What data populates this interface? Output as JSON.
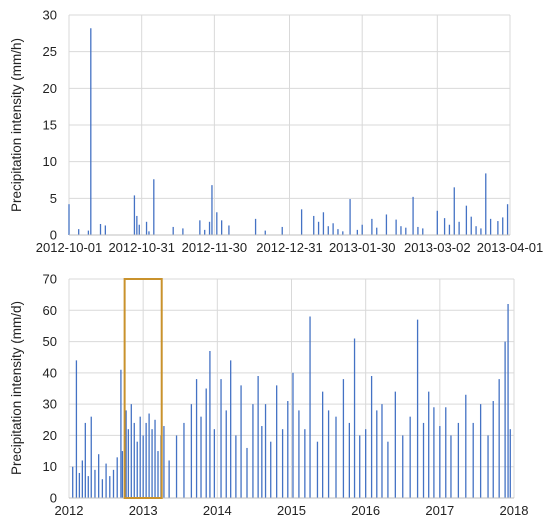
{
  "chart_data": [
    {
      "type": "line",
      "ylabel": "Precipitation intensity (mm/h)",
      "ylim": [
        0,
        30
      ],
      "yticks": [
        "0",
        "5",
        "10",
        "15",
        "20",
        "25",
        "30"
      ],
      "xlim": [
        "2012-10-01",
        "2013-04-01"
      ],
      "xticks": [
        "2012-10-01",
        "2012-10-31",
        "2012-11-30",
        "2012-12-31",
        "2013-01-30",
        "2013-03-02",
        "2013-04-01"
      ],
      "grid": true,
      "series_color": "#4472c4",
      "series": [
        {
          "x": [
            "2012-10-01",
            "2012-10-05",
            "2012-10-09",
            "2012-10-10",
            "2012-10-14",
            "2012-10-16",
            "2012-10-28",
            "2012-10-29",
            "2012-10-30",
            "2012-11-02",
            "2012-11-03",
            "2012-11-05",
            "2012-11-13",
            "2012-11-17",
            "2012-11-24",
            "2012-11-26",
            "2012-11-28",
            "2012-11-29",
            "2012-12-01",
            "2012-12-03",
            "2012-12-06",
            "2012-12-17",
            "2012-12-21",
            "2012-12-28",
            "2013-01-05",
            "2013-01-10",
            "2013-01-12",
            "2013-01-14",
            "2013-01-16",
            "2013-01-18",
            "2013-01-20",
            "2013-01-22",
            "2013-01-25",
            "2013-01-28",
            "2013-01-30",
            "2013-02-03",
            "2013-02-05",
            "2013-02-09",
            "2013-02-13",
            "2013-02-15",
            "2013-02-17",
            "2013-02-20",
            "2013-02-22",
            "2013-02-24",
            "2013-03-02",
            "2013-03-05",
            "2013-03-07",
            "2013-03-09",
            "2013-03-11",
            "2013-03-14",
            "2013-03-16",
            "2013-03-18",
            "2013-03-20",
            "2013-03-22",
            "2013-03-24",
            "2013-03-27",
            "2013-03-29",
            "2013-03-31"
          ],
          "y": [
            4.2,
            0.8,
            0.6,
            28.2,
            1.5,
            1.3,
            5.4,
            2.6,
            1.4,
            1.8,
            0.5,
            7.6,
            1.1,
            0.9,
            2.0,
            0.7,
            1.8,
            6.8,
            3.1,
            2.0,
            1.3,
            2.2,
            0.6,
            1.1,
            3.5,
            2.6,
            1.8,
            3.1,
            1.2,
            1.6,
            0.8,
            0.5,
            4.9,
            0.7,
            1.4,
            2.2,
            1.0,
            2.8,
            2.1,
            1.2,
            1.0,
            5.2,
            1.1,
            0.9,
            3.3,
            2.3,
            1.4,
            6.5,
            1.8,
            4.0,
            2.5,
            1.2,
            0.9,
            8.4,
            2.2,
            1.9,
            2.4,
            4.2
          ]
        }
      ]
    },
    {
      "type": "line",
      "ylabel": "Precipitation intensity (mm/d)",
      "ylim": [
        0,
        70
      ],
      "yticks": [
        "0",
        "10",
        "20",
        "30",
        "40",
        "50",
        "60",
        "70"
      ],
      "xlim": [
        2012,
        2018
      ],
      "xticks": [
        "2012",
        "2013",
        "2014",
        "2015",
        "2016",
        "2017",
        "2018"
      ],
      "grid": true,
      "series_color": "#4472c4",
      "highlight_box": {
        "x": [
          2012.75,
          2013.25
        ],
        "y": [
          0,
          70
        ],
        "color": "#c9922c"
      },
      "series": [
        {
          "x": [
            2012.05,
            2012.1,
            2012.14,
            2012.18,
            2012.22,
            2012.26,
            2012.3,
            2012.35,
            2012.4,
            2012.45,
            2012.5,
            2012.55,
            2012.6,
            2012.65,
            2012.7,
            2012.72,
            2012.77,
            2012.8,
            2012.84,
            2012.88,
            2012.92,
            2012.96,
            2013.0,
            2013.04,
            2013.08,
            2013.12,
            2013.16,
            2013.2,
            2013.24,
            2013.28,
            2013.35,
            2013.45,
            2013.55,
            2013.65,
            2013.72,
            2013.78,
            2013.85,
            2013.9,
            2013.96,
            2014.05,
            2014.12,
            2014.18,
            2014.25,
            2014.32,
            2014.4,
            2014.48,
            2014.55,
            2014.6,
            2014.65,
            2014.72,
            2014.8,
            2014.88,
            2014.95,
            2015.02,
            2015.1,
            2015.18,
            2015.25,
            2015.35,
            2015.42,
            2015.5,
            2015.6,
            2015.7,
            2015.78,
            2015.85,
            2015.92,
            2016.0,
            2016.08,
            2016.15,
            2016.22,
            2016.3,
            2016.4,
            2016.5,
            2016.6,
            2016.7,
            2016.78,
            2016.85,
            2016.92,
            2017.0,
            2017.08,
            2017.15,
            2017.25,
            2017.35,
            2017.45,
            2017.55,
            2017.65,
            2017.72,
            2017.8,
            2017.88,
            2017.92,
            2017.95
          ],
          "y": [
            10,
            44,
            8,
            12,
            24,
            7,
            26,
            9,
            14,
            6,
            11,
            7,
            9,
            13,
            41,
            15,
            28,
            22,
            30,
            24,
            18,
            26,
            20,
            24,
            27,
            22,
            25,
            15,
            20,
            23,
            12,
            20,
            24,
            30,
            38,
            26,
            35,
            47,
            22,
            38,
            28,
            44,
            20,
            36,
            16,
            30,
            39,
            23,
            30,
            18,
            36,
            22,
            31,
            40,
            28,
            22,
            58,
            18,
            34,
            28,
            26,
            38,
            24,
            51,
            20,
            22,
            39,
            28,
            30,
            18,
            34,
            20,
            26,
            57,
            24,
            34,
            29,
            23,
            29,
            20,
            24,
            33,
            24,
            30,
            20,
            31,
            38,
            50,
            62,
            22
          ]
        }
      ]
    }
  ]
}
